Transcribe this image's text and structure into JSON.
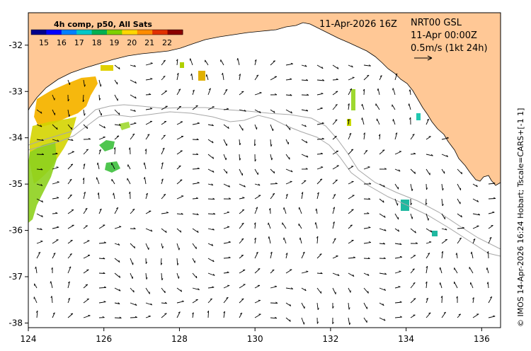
{
  "map": {
    "header": {
      "datetime": "11-Apr-2026 16Z",
      "product": "NRT00 GSL",
      "current_time": "11-Apr 00:00Z",
      "scale_label": "0.5m/s (1kt 24h)"
    },
    "colorbar": {
      "title": "4h comp, p50, All Sats",
      "ticks": [
        "15",
        "16",
        "17",
        "18",
        "19",
        "20",
        "21",
        "22"
      ],
      "colors": [
        "#00008b",
        "#0000ff",
        "#0080ff",
        "#00c8c8",
        "#00b050",
        "#7fd000",
        "#ffd700",
        "#ff8c00",
        "#e03000",
        "#8b0000"
      ]
    },
    "credit": "© IMOS 14-Apr-2026 16:24 Hobart; Tscale=CARS+[-1 1]",
    "x_ticks": [
      "124",
      "126",
      "128",
      "130",
      "132",
      "134",
      "136"
    ],
    "y_ticks": [
      "-32",
      "-33",
      "-34",
      "-35",
      "-36",
      "-37",
      "-38"
    ],
    "lon_range": [
      124,
      136.5
    ],
    "lat_range": [
      -31.3,
      -38.1
    ],
    "colors": {
      "land": "#ffc896",
      "sea": "#ffffff",
      "bathymetry": "#a8a8a8",
      "arrow": "#000000"
    }
  }
}
